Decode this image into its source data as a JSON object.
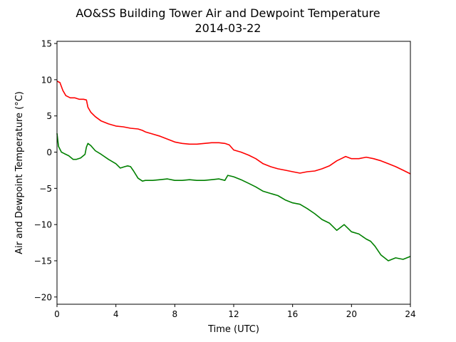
{
  "chart_data": {
    "type": "line",
    "title": "AO&SS Building Tower Air and Dewpoint Temperature",
    "subtitle": "2014-03-22",
    "xlabel": "Time (UTC)",
    "ylabel": "Air and Dewpoint Temperature (°C)",
    "xlim": [
      0,
      24
    ],
    "ylim": [
      -21,
      15.3
    ],
    "x_ticks": [
      0,
      4,
      8,
      12,
      16,
      20,
      24
    ],
    "y_ticks": [
      -20,
      -15,
      -10,
      -5,
      0,
      5,
      10,
      15
    ],
    "grid": false,
    "legend": "none",
    "series": [
      {
        "color": "#ff0000",
        "x": [
          0,
          0.2,
          0.4,
          0.6,
          0.9,
          1.2,
          1.5,
          1.8,
          2.0,
          2.1,
          2.3,
          2.6,
          3.0,
          3.5,
          4.0,
          4.5,
          5.0,
          5.5,
          5.8,
          6.0,
          6.5,
          7.0,
          7.5,
          8.0,
          8.5,
          9.0,
          9.5,
          10.0,
          10.5,
          11.0,
          11.4,
          11.7,
          12.0,
          12.5,
          13.0,
          13.5,
          14.0,
          14.5,
          15.0,
          15.5,
          16.0,
          16.5,
          17.0,
          17.5,
          18.0,
          18.5,
          19.0,
          19.3,
          19.6,
          20.0,
          20.5,
          21.0,
          21.5,
          22.0,
          22.5,
          23.0,
          23.5,
          24.0
        ],
        "y": [
          9.8,
          9.6,
          8.5,
          7.8,
          7.5,
          7.5,
          7.3,
          7.3,
          7.2,
          6.2,
          5.5,
          4.9,
          4.3,
          3.9,
          3.6,
          3.5,
          3.3,
          3.2,
          3.0,
          2.8,
          2.5,
          2.2,
          1.8,
          1.4,
          1.2,
          1.1,
          1.1,
          1.2,
          1.3,
          1.3,
          1.2,
          1.0,
          0.3,
          0.0,
          -0.4,
          -0.9,
          -1.6,
          -2.0,
          -2.3,
          -2.5,
          -2.7,
          -2.9,
          -2.7,
          -2.6,
          -2.3,
          -1.9,
          -1.2,
          -0.9,
          -0.6,
          -0.9,
          -0.9,
          -0.7,
          -0.9,
          -1.2,
          -1.6,
          -2.0,
          -2.5,
          -3.0
        ]
      },
      {
        "color": "#008000",
        "x": [
          0,
          0.1,
          0.3,
          0.5,
          0.8,
          1.1,
          1.3,
          1.6,
          1.9,
          2.0,
          2.1,
          2.3,
          2.6,
          3.0,
          3.5,
          4.0,
          4.3,
          4.6,
          4.8,
          5.0,
          5.2,
          5.5,
          5.8,
          6.0,
          6.5,
          7.0,
          7.5,
          8.0,
          8.5,
          9.0,
          9.5,
          10.0,
          10.5,
          11.0,
          11.4,
          11.6,
          11.8,
          12.0,
          12.5,
          13.0,
          13.5,
          14.0,
          14.5,
          15.0,
          15.5,
          16.0,
          16.5,
          17.0,
          17.5,
          18.0,
          18.5,
          19.0,
          19.5,
          20.0,
          20.5,
          21.0,
          21.3,
          21.6,
          22.0,
          22.5,
          23.0,
          23.5,
          24.0
        ],
        "y": [
          2.6,
          0.8,
          0.0,
          -0.2,
          -0.5,
          -1.0,
          -1.0,
          -0.8,
          -0.3,
          0.7,
          1.2,
          0.9,
          0.2,
          -0.3,
          -1.0,
          -1.6,
          -2.2,
          -2.0,
          -1.9,
          -2.0,
          -2.6,
          -3.6,
          -4.0,
          -3.9,
          -3.9,
          -3.8,
          -3.7,
          -3.9,
          -3.9,
          -3.8,
          -3.9,
          -3.9,
          -3.8,
          -3.7,
          -3.9,
          -3.2,
          -3.3,
          -3.4,
          -3.8,
          -4.3,
          -4.8,
          -5.4,
          -5.7,
          -6.0,
          -6.6,
          -7.0,
          -7.2,
          -7.8,
          -8.5,
          -9.3,
          -9.8,
          -10.8,
          -10.0,
          -11.0,
          -11.3,
          -12.0,
          -12.3,
          -13.0,
          -14.2,
          -15.0,
          -14.6,
          -14.8,
          -14.4
        ]
      }
    ]
  }
}
